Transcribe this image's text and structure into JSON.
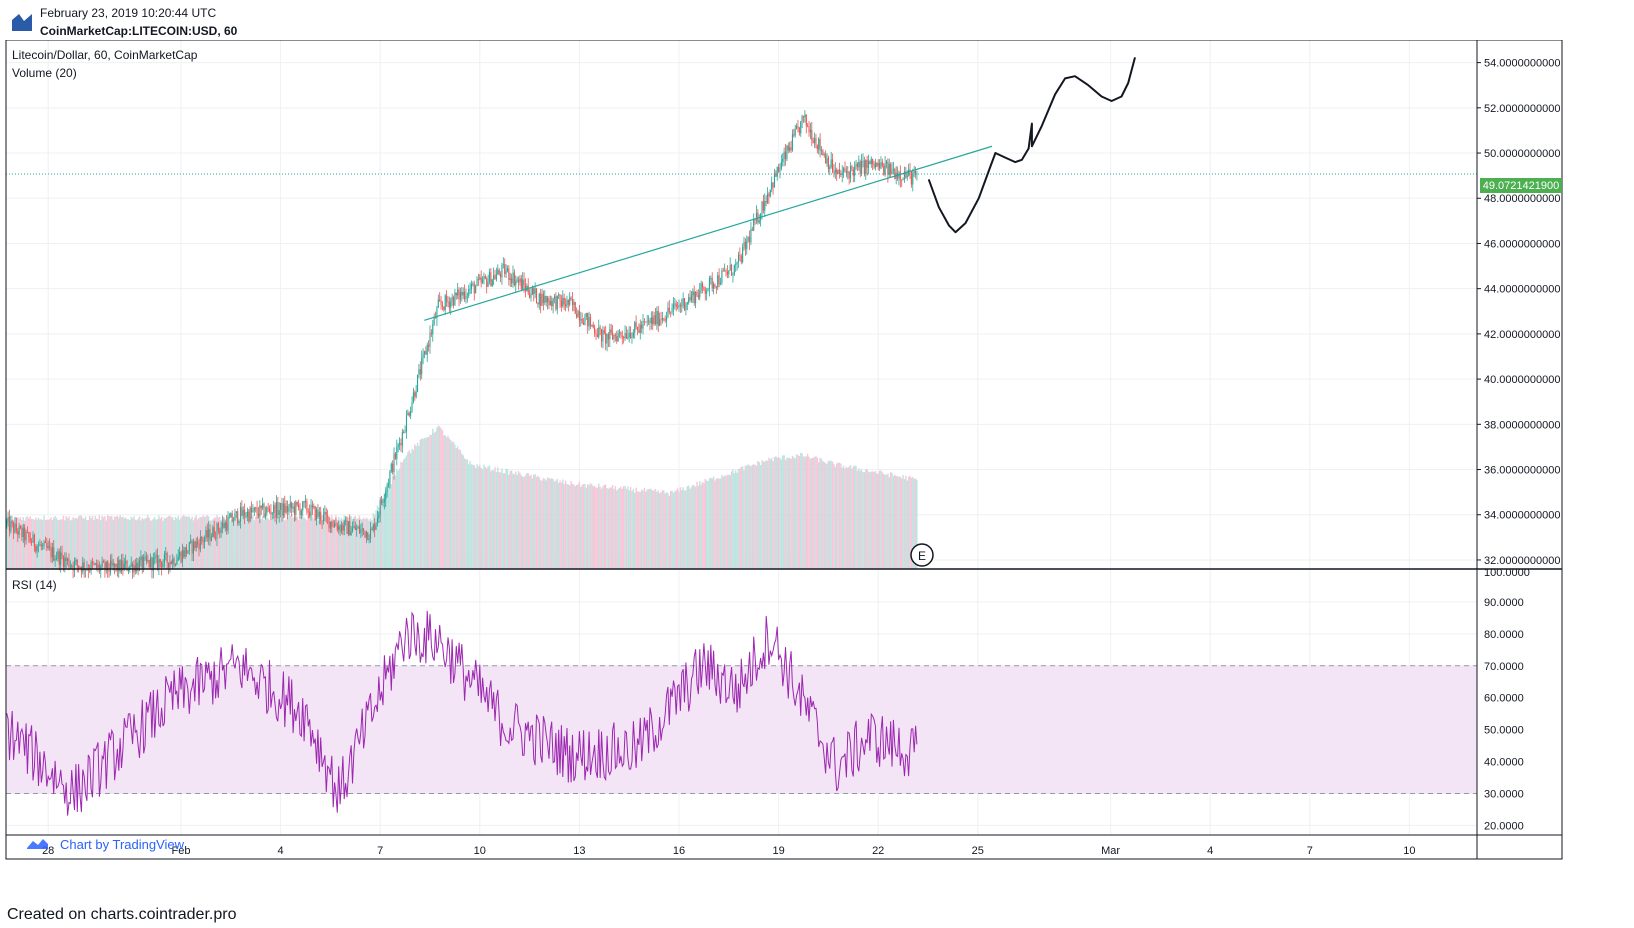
{
  "header": {
    "date": "February 23, 2019 10:20:44 UTC",
    "symbol": "CoinMarketCap:LITECOIN:USD, 60"
  },
  "footer": {
    "text": "Created on charts.cointrader.pro"
  },
  "colors": {
    "up": "#26a69a",
    "down": "#ef5350",
    "volume_up": "#b2dfdb",
    "volume_down": "#f8bbd0",
    "rsi": "#9c27b0",
    "rsi_band": "#f3e5f5",
    "trendline": "#26a69a",
    "drawing": "#131722",
    "last_price_bg": "#4caf50"
  },
  "price_pane": {
    "title": "Litecoin/Dollar, 60, CoinMarketCap",
    "volume_label": "Volume (20)",
    "last_price_label": "49.0721421900",
    "event_marker": "E",
    "watermark": "Chart by TradingView"
  },
  "rsi_pane": {
    "label": "RSI (14)"
  },
  "chart_data": [
    {
      "type": "line",
      "title": "Litecoin/Dollar, 60, CoinMarketCap",
      "series_kind": "candlestick (hourly)",
      "x": [
        "Jan 27",
        "Jan 28",
        "Jan 29",
        "Jan 30",
        "Jan 31",
        "Feb 1",
        "Feb 2",
        "Feb 3",
        "Feb 4",
        "Feb 5",
        "Feb 6",
        "Feb 7",
        "Feb 8",
        "Feb 9",
        "Feb 10",
        "Feb 11",
        "Feb 12",
        "Feb 13",
        "Feb 14",
        "Feb 15",
        "Feb 16",
        "Feb 17",
        "Feb 18",
        "Feb 19",
        "Feb 20",
        "Feb 21",
        "Feb 22",
        "Feb 23"
      ],
      "series": [
        {
          "values": [
            33.6,
            32.6,
            31.8,
            31.6,
            31.8,
            32.0,
            33.0,
            34.0,
            34.2,
            34.3,
            33.5,
            33.2,
            38.0,
            43.2,
            44.0,
            44.8,
            43.6,
            43.3,
            41.8,
            42.2,
            43.0,
            44.0,
            45.0,
            48.5,
            51.5,
            49.0,
            49.5,
            49.07
          ]
        }
      ],
      "last_price": 49.07214219,
      "price_ticks": [
        "32.0000000000",
        "34.0000000000",
        "36.0000000000",
        "38.0000000000",
        "40.0000000000",
        "42.0000000000",
        "44.0000000000",
        "46.0000000000",
        "48.0000000000",
        "50.0000000000",
        "52.0000000000",
        "54.0000000000"
      ],
      "ylim": [
        31.6,
        55.0
      ],
      "x_ticks": [
        "28",
        "Feb",
        "4",
        "7",
        "10",
        "13",
        "16",
        "19",
        "22",
        "25",
        "Mar",
        "4",
        "7",
        "10"
      ],
      "annotations": [
        "ascending trendline from Feb 8 to Feb 25",
        "hand-drawn projection: dip to ~46.5 then rally above 54"
      ]
    },
    {
      "type": "area",
      "title": "Volume (20)",
      "x": [
        "Jan 27",
        "Feb 1",
        "Feb 7",
        "Feb 8",
        "Feb 9",
        "Feb 10",
        "Feb 13",
        "Feb 16",
        "Feb 19",
        "Feb 20",
        "Feb 21",
        "Feb 23"
      ],
      "values": [
        0.27,
        0.27,
        0.27,
        0.6,
        0.75,
        0.55,
        0.45,
        0.4,
        0.58,
        0.6,
        0.55,
        0.47
      ],
      "ylim": [
        0,
        1
      ]
    },
    {
      "type": "line",
      "title": "RSI (14)",
      "x": [
        "Jan 27",
        "Jan 29",
        "Feb 1",
        "Feb 3",
        "Feb 5",
        "Feb 6",
        "Feb 8",
        "Feb 9",
        "Feb 11",
        "Feb 13",
        "Feb 15",
        "Feb 17",
        "Feb 18",
        "Feb 19",
        "Feb 20",
        "Feb 21",
        "Feb 22",
        "Feb 23"
      ],
      "values": [
        50,
        30,
        60,
        70,
        55,
        30,
        80,
        78,
        52,
        42,
        44,
        70,
        62,
        80,
        58,
        38,
        48,
        42
      ],
      "ticks": [
        "20.0000",
        "30.0000",
        "40.0000",
        "50.0000",
        "60.0000",
        "70.0000",
        "80.0000",
        "90.0000",
        "100.0000"
      ],
      "ylim": [
        17,
        100
      ],
      "bands": [
        30,
        70
      ]
    }
  ]
}
